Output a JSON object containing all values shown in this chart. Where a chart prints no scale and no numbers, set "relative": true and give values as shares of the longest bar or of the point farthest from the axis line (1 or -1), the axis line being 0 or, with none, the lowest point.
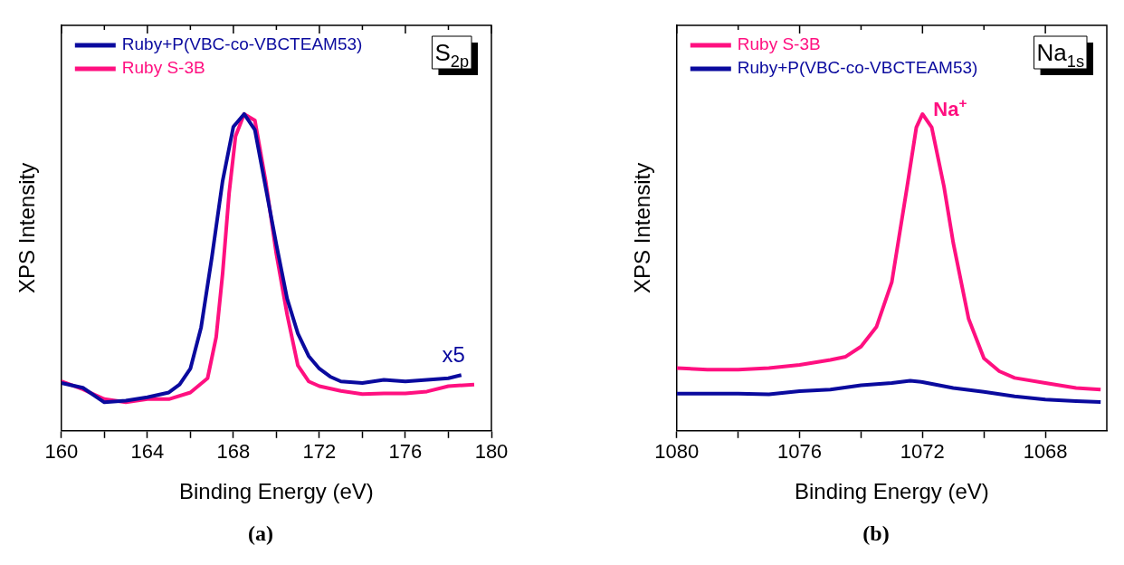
{
  "chart_data": [
    {
      "type": "line",
      "title": "S$_{2p}$",
      "xlabel": "Binding Energy (eV)",
      "ylabel": "XPS Intensity",
      "relative": true,
      "legend": "top left",
      "marker": "none",
      "line_style": "solid",
      "grid": false,
      "tick_labels": "x",
      "xlim": [
        160,
        180
      ],
      "xticks": [
        160,
        {
          "value": 162,
          "label": null
        },
        164,
        {
          "value": 166,
          "label": null
        },
        168,
        {
          "value": 170,
          "label": null
        },
        172,
        {
          "value": 174,
          "label": null
        },
        176,
        {
          "value": 178,
          "label": null
        },
        180
      ],
      "annotations": [
        {
          "text": "x5",
          "x": 178.6,
          "y": 0.176
        },
        "(a)"
      ],
      "series": [
        {
          "name": "Ruby+P(VBC-co-VBCTEAM53)",
          "color": "#0a0a9e",
          "x": [
            160,
            161,
            162,
            163,
            164,
            165,
            165.5,
            166,
            166.5,
            167,
            167.5,
            168,
            168.5,
            169,
            169.5,
            170,
            170.5,
            171,
            171.5,
            172,
            172.5,
            173,
            174,
            175,
            176,
            177,
            178,
            178.6
          ],
          "values": [
            0.151,
            0.136,
            0.09,
            0.095,
            0.106,
            0.121,
            0.146,
            0.196,
            0.327,
            0.548,
            0.789,
            0.96,
            1.0,
            0.95,
            0.769,
            0.588,
            0.417,
            0.307,
            0.236,
            0.196,
            0.171,
            0.156,
            0.151,
            0.161,
            0.156,
            0.161,
            0.166,
            0.176
          ]
        },
        {
          "name": "Ruby S-3B",
          "color": "#ff1080",
          "x": [
            160,
            161,
            162,
            163,
            164,
            165,
            166,
            166.8,
            167.2,
            167.5,
            167.8,
            168.1,
            168.5,
            169,
            169.5,
            170,
            170.5,
            171,
            171.5,
            172,
            173,
            174,
            175,
            176,
            177,
            178,
            179.2
          ],
          "values": [
            0.156,
            0.131,
            0.1,
            0.09,
            0.1,
            0.1,
            0.121,
            0.166,
            0.296,
            0.497,
            0.749,
            0.93,
            1.0,
            0.98,
            0.789,
            0.558,
            0.367,
            0.206,
            0.156,
            0.141,
            0.126,
            0.116,
            0.118,
            0.118,
            0.124,
            0.141,
            0.146
          ]
        }
      ]
    },
    {
      "type": "line",
      "title": "Na$_{1s}$",
      "xlabel": "Binding Energy (eV)",
      "ylabel": "XPS Intensity",
      "relative": true,
      "legend": "top left",
      "marker": "none",
      "line_style": "solid",
      "grid": false,
      "tick_labels": "x",
      "xlim": [
        1080,
        1066
      ],
      "xticks": [
        1080,
        {
          "value": 1078,
          "label": null
        },
        1076,
        {
          "value": 1074,
          "label": null
        },
        1072,
        {
          "value": 1070,
          "label": null
        },
        1068
      ],
      "annotations": [
        {
          "text": "Na$^{+}$",
          "x": 1072,
          "y": 1.0
        },
        "(b)"
      ],
      "series": [
        {
          "name": "Ruby S-3B",
          "color": "#ff1080",
          "x": [
            1080,
            1079,
            1078,
            1077,
            1076,
            1075,
            1074.5,
            1074,
            1073.5,
            1073,
            1072.5,
            1072.2,
            1072,
            1071.7,
            1071.3,
            1071,
            1070.5,
            1070,
            1069.5,
            1069,
            1068,
            1067,
            1066.2
          ],
          "values": [
            0.198,
            0.193,
            0.193,
            0.198,
            0.208,
            0.224,
            0.234,
            0.266,
            0.328,
            0.469,
            0.771,
            0.958,
            1.0,
            0.958,
            0.771,
            0.594,
            0.354,
            0.229,
            0.188,
            0.167,
            0.151,
            0.135,
            0.13
          ]
        },
        {
          "name": "Ruby+P(VBC-co-VBCTEAM53)",
          "color": "#0a0a9e",
          "x": [
            1080,
            1078,
            1077,
            1076,
            1075,
            1074,
            1073,
            1072.4,
            1072,
            1071,
            1070,
            1069,
            1068,
            1067,
            1066.2
          ],
          "values": [
            0.117,
            0.117,
            0.115,
            0.125,
            0.13,
            0.144,
            0.151,
            0.158,
            0.154,
            0.135,
            0.123,
            0.109,
            0.099,
            0.094,
            0.091
          ]
        }
      ]
    }
  ]
}
